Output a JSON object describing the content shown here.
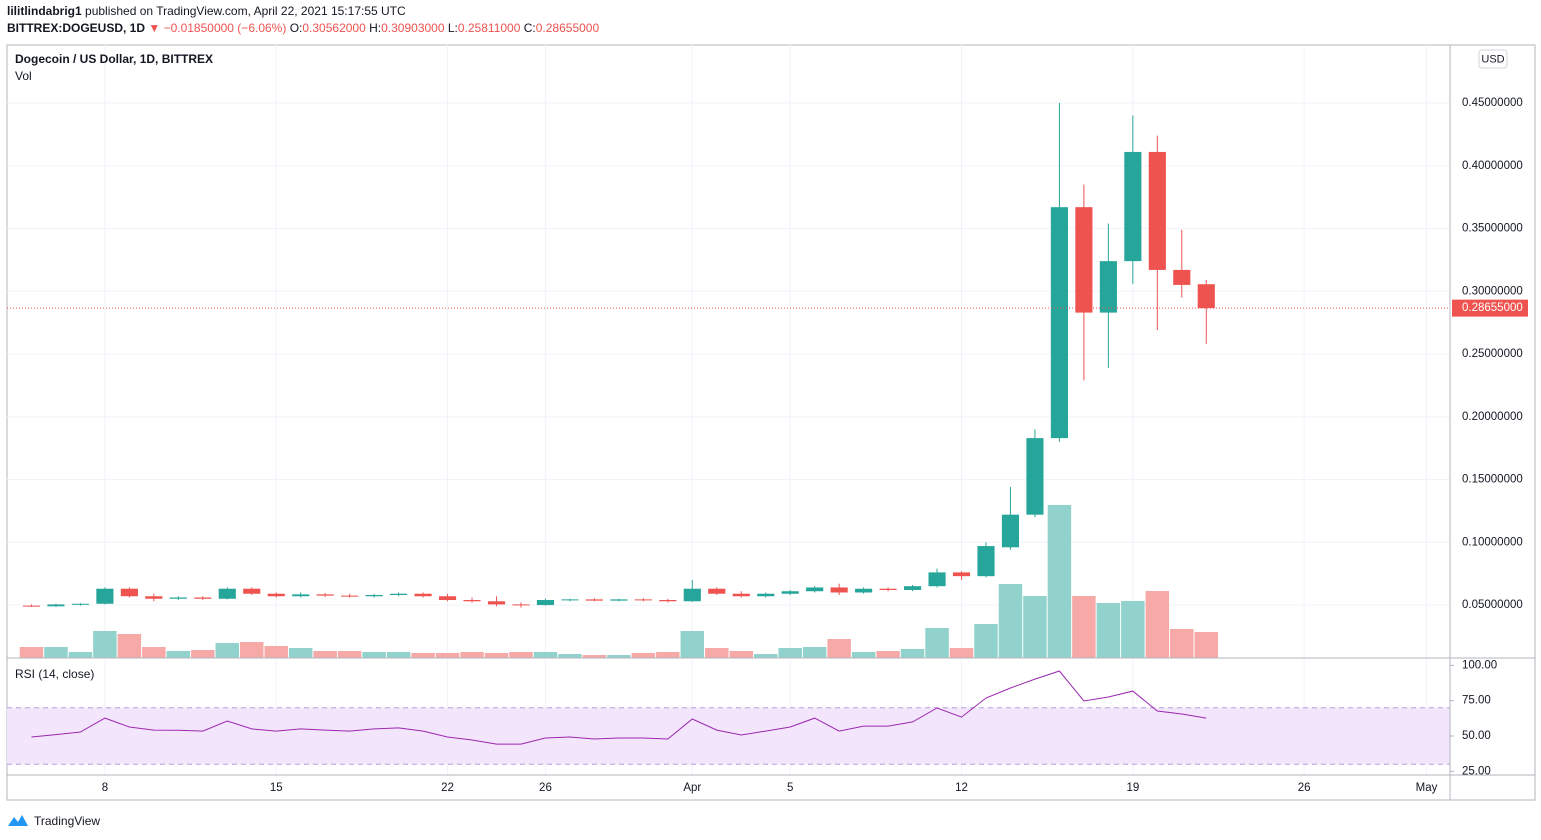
{
  "header": {
    "author": "lilitlindabrig1",
    "published": "published on TradingView.com, April 22, 2021 15:17:55 UTC",
    "symbol": "BITTREX:DOGEUSD, 1D",
    "change": "▼ −0.01850000 (−6.06%)",
    "ohlc": [
      {
        "label": "O:",
        "value": "0.30562000"
      },
      {
        "label": "H:",
        "value": "0.30903000"
      },
      {
        "label": "L:",
        "value": "0.25811000"
      },
      {
        "label": "C:",
        "value": "0.28655000"
      }
    ]
  },
  "chart_data": {
    "type": "candlestick",
    "title": "Dogecoin / US Dollar, 1D, BITTREX",
    "currency": "USD",
    "grid": true,
    "colors": {
      "up": "#26a69a",
      "down": "#ef5350"
    },
    "x": [
      "2021-03-05",
      "2021-03-06",
      "2021-03-07",
      "2021-03-08",
      "2021-03-09",
      "2021-03-10",
      "2021-03-11",
      "2021-03-12",
      "2021-03-13",
      "2021-03-14",
      "2021-03-15",
      "2021-03-16",
      "2021-03-17",
      "2021-03-18",
      "2021-03-19",
      "2021-03-20",
      "2021-03-21",
      "2021-03-22",
      "2021-03-23",
      "2021-03-24",
      "2021-03-25",
      "2021-03-26",
      "2021-03-27",
      "2021-03-28",
      "2021-03-29",
      "2021-03-30",
      "2021-03-31",
      "2021-04-01",
      "2021-04-02",
      "2021-04-03",
      "2021-04-04",
      "2021-04-05",
      "2021-04-06",
      "2021-04-07",
      "2021-04-08",
      "2021-04-09",
      "2021-04-10",
      "2021-04-11",
      "2021-04-12",
      "2021-04-13",
      "2021-04-14",
      "2021-04-15",
      "2021-04-16",
      "2021-04-17",
      "2021-04-18",
      "2021-04-19",
      "2021-04-20",
      "2021-04-21",
      "2021-04-22"
    ],
    "open": [
      0.0495,
      0.049,
      0.0505,
      0.051,
      0.063,
      0.057,
      0.055,
      0.056,
      0.055,
      0.063,
      0.059,
      0.057,
      0.0585,
      0.0575,
      0.057,
      0.058,
      0.059,
      0.057,
      0.054,
      0.053,
      0.0505,
      0.05,
      0.054,
      0.0545,
      0.0535,
      0.0545,
      0.054,
      0.053,
      0.063,
      0.059,
      0.057,
      0.059,
      0.061,
      0.064,
      0.06,
      0.063,
      0.062,
      0.065,
      0.076,
      0.073,
      0.096,
      0.122,
      0.183,
      0.367,
      0.283,
      0.324,
      0.411,
      0.317,
      0.30562
    ],
    "high": [
      0.0505,
      0.051,
      0.0515,
      0.064,
      0.064,
      0.059,
      0.057,
      0.057,
      0.064,
      0.064,
      0.06,
      0.06,
      0.0595,
      0.059,
      0.059,
      0.06,
      0.06,
      0.059,
      0.056,
      0.057,
      0.052,
      0.055,
      0.055,
      0.0555,
      0.055,
      0.0555,
      0.055,
      0.07,
      0.064,
      0.061,
      0.06,
      0.062,
      0.065,
      0.067,
      0.064,
      0.064,
      0.066,
      0.079,
      0.077,
      0.1,
      0.144,
      0.19,
      0.45,
      0.385,
      0.354,
      0.44,
      0.424,
      0.349,
      0.30903
    ],
    "low": [
      0.0485,
      0.0485,
      0.0495,
      0.0505,
      0.056,
      0.053,
      0.054,
      0.054,
      0.0545,
      0.058,
      0.056,
      0.056,
      0.0565,
      0.056,
      0.056,
      0.057,
      0.056,
      0.053,
      0.052,
      0.049,
      0.048,
      0.0495,
      0.053,
      0.053,
      0.053,
      0.053,
      0.052,
      0.0525,
      0.058,
      0.056,
      0.056,
      0.058,
      0.06,
      0.058,
      0.059,
      0.061,
      0.061,
      0.064,
      0.07,
      0.072,
      0.094,
      0.12,
      0.18,
      0.229,
      0.239,
      0.306,
      0.269,
      0.295,
      0.25811
    ],
    "close": [
      0.049,
      0.0505,
      0.051,
      0.063,
      0.057,
      0.055,
      0.056,
      0.055,
      0.063,
      0.059,
      0.057,
      0.0585,
      0.0575,
      0.057,
      0.058,
      0.059,
      0.057,
      0.054,
      0.053,
      0.0505,
      0.05,
      0.054,
      0.0545,
      0.0535,
      0.0545,
      0.054,
      0.053,
      0.063,
      0.059,
      0.057,
      0.059,
      0.061,
      0.064,
      0.06,
      0.063,
      0.062,
      0.065,
      0.076,
      0.073,
      0.097,
      0.122,
      0.183,
      0.367,
      0.283,
      0.324,
      0.411,
      0.317,
      0.30505,
      0.28655
    ],
    "xlim": [
      "2021-03-04T12:00:00Z",
      "2021-05-02T11:00:00Z"
    ],
    "xticks": [
      {
        "value": "2021-03-08",
        "label": "8"
      },
      {
        "value": "2021-03-15",
        "label": "15"
      },
      {
        "value": "2021-03-22",
        "label": "22"
      },
      {
        "value": "2021-03-26",
        "label": "26"
      },
      {
        "value": "2021-04-01",
        "label": "Apr"
      },
      {
        "value": "2021-04-05",
        "label": "5"
      },
      {
        "value": "2021-04-12",
        "label": "12"
      },
      {
        "value": "2021-04-19",
        "label": "19"
      },
      {
        "value": "2021-04-26",
        "label": "26"
      },
      {
        "value": "2021-05-01",
        "label": "May"
      }
    ],
    "ylim": [
      0.0078,
      0.4962
    ],
    "yticks": [
      {
        "value": 0.05,
        "label": "0.05000000"
      },
      {
        "value": 0.1,
        "label": "0.10000000"
      },
      {
        "value": 0.15,
        "label": "0.15000000"
      },
      {
        "value": 0.2,
        "label": "0.20000000"
      },
      {
        "value": 0.25,
        "label": "0.25000000"
      },
      {
        "value": 0.3,
        "label": "0.30000000"
      },
      {
        "value": 0.35,
        "label": "0.35000000"
      },
      {
        "value": 0.4,
        "label": "0.40000000"
      },
      {
        "value": 0.45,
        "label": "0.45000000"
      }
    ],
    "last_price": {
      "value": 0.28655,
      "label": "0.28655000",
      "color": "#ef5350"
    },
    "volume": {
      "name": "Vol",
      "ylim": [
        0,
        613
      ],
      "colors": {
        "up": "#92d2cc",
        "down": "#f7a9a7"
      },
      "values": [
        11,
        11,
        6,
        27,
        24,
        11,
        7,
        8,
        15,
        16,
        12,
        10,
        7,
        7,
        6,
        6,
        5,
        5,
        6,
        5,
        6,
        6,
        4,
        3,
        3,
        5,
        6,
        27,
        10,
        7,
        4,
        10,
        11,
        19,
        6,
        7,
        9,
        30,
        10,
        34,
        74,
        62,
        153,
        62,
        55,
        57,
        67,
        29,
        26
      ]
    },
    "rsi": {
      "name": "RSI (14, close)",
      "color": "#9c27b0",
      "band": [
        30,
        70
      ],
      "band_color": "#f3e5fc",
      "ylim": [
        22.4,
        105.2
      ],
      "yticks": [
        {
          "value": 25,
          "label": "25.00"
        },
        {
          "value": 50,
          "label": "50.00"
        },
        {
          "value": 75,
          "label": "75.00"
        },
        {
          "value": 100,
          "label": "100.00"
        }
      ],
      "values": [
        49.3,
        51,
        52.8,
        62.7,
        56.4,
        54.2,
        54,
        53.5,
        60.6,
        55,
        53.5,
        55,
        54.2,
        53.5,
        55,
        55.7,
        53.5,
        49.3,
        47.2,
        44.3,
        44.3,
        48.6,
        49.3,
        47.9,
        48.6,
        48.6,
        47.9,
        62,
        54.2,
        50.7,
        53.5,
        56.4,
        62.7,
        53.5,
        57,
        57,
        60,
        69.8,
        63.4,
        76.9,
        84,
        90.3,
        96,
        74.8,
        77.6,
        81.8,
        67.7,
        65.6,
        62.7
      ]
    }
  },
  "footer": {
    "brand": "TradingView"
  }
}
